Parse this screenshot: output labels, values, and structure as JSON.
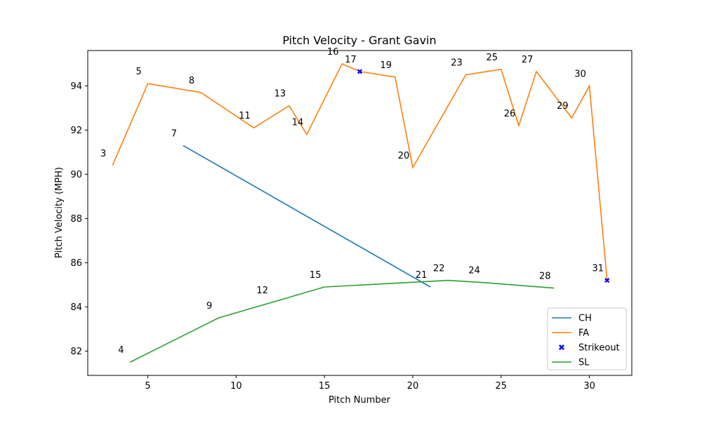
{
  "chart_data": {
    "type": "line",
    "title": "Pitch Velocity - Grant Gavin",
    "xlabel": "Pitch Number",
    "ylabel": "Pitch Velocity (MPH)",
    "xlim": [
      1.6,
      32.4
    ],
    "ylim": [
      80.9,
      95.6
    ],
    "xticks": [
      5,
      10,
      15,
      20,
      25,
      30
    ],
    "yticks": [
      82,
      84,
      86,
      88,
      90,
      92,
      94
    ],
    "legend_position": "bottom-right",
    "grid": false,
    "series": [
      {
        "name": "CH",
        "color": "#1f77b4",
        "points": [
          {
            "x": 7,
            "y": 91.3,
            "label": "7"
          },
          {
            "x": 21,
            "y": 84.9,
            "label": "21"
          }
        ]
      },
      {
        "name": "FA",
        "color": "#ff7f0e",
        "points": [
          {
            "x": 3,
            "y": 90.4,
            "label": "3"
          },
          {
            "x": 5,
            "y": 94.1,
            "label": "5"
          },
          {
            "x": 8,
            "y": 93.7,
            "label": "8"
          },
          {
            "x": 11,
            "y": 92.1,
            "label": "11"
          },
          {
            "x": 13,
            "y": 93.1,
            "label": "13"
          },
          {
            "x": 14,
            "y": 91.8,
            "label": "14"
          },
          {
            "x": 16,
            "y": 95.0,
            "label": "16"
          },
          {
            "x": 17,
            "y": 94.65,
            "label": "17"
          },
          {
            "x": 19,
            "y": 94.4,
            "label": "19"
          },
          {
            "x": 20,
            "y": 90.3,
            "label": "20"
          },
          {
            "x": 23,
            "y": 94.5,
            "label": "23"
          },
          {
            "x": 25,
            "y": 94.75,
            "label": "25"
          },
          {
            "x": 26,
            "y": 92.2,
            "label": "26"
          },
          {
            "x": 27,
            "y": 94.65,
            "label": "27"
          },
          {
            "x": 29,
            "y": 92.55,
            "label": "29"
          },
          {
            "x": 30,
            "y": 94.0,
            "label": "30"
          },
          {
            "x": 31,
            "y": 85.2,
            "label": "31"
          }
        ]
      },
      {
        "name": "SL",
        "color": "#2ca02c",
        "points": [
          {
            "x": 4,
            "y": 81.5,
            "label": "4"
          },
          {
            "x": 9,
            "y": 83.5,
            "label": "9"
          },
          {
            "x": 12,
            "y": 84.2,
            "label": "12"
          },
          {
            "x": 15,
            "y": 84.9,
            "label": "15"
          },
          {
            "x": 22,
            "y": 85.2,
            "label": "22"
          },
          {
            "x": 24,
            "y": 85.1,
            "label": "24"
          },
          {
            "x": 28,
            "y": 84.85,
            "label": "28"
          }
        ]
      }
    ],
    "strikeouts": {
      "name": "Strikeout",
      "color": "#0000ff",
      "marker": "x-filled",
      "points": [
        {
          "x": 17,
          "y": 94.65
        },
        {
          "x": 31,
          "y": 85.2
        }
      ]
    },
    "legend": [
      "CH",
      "FA",
      "Strikeout",
      "SL"
    ]
  }
}
